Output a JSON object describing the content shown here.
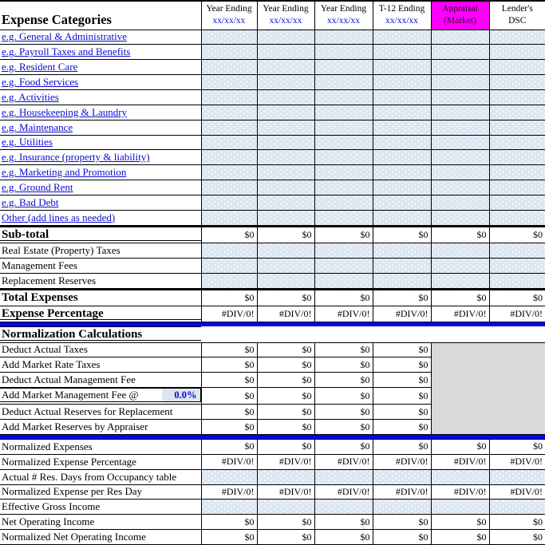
{
  "colors": {
    "input_cell_bg": "#dce6f1",
    "appraisal_header_bg": "#ff00ff",
    "disabled_region_bg": "#d9d9d9",
    "link_text": "#0b0bd0",
    "separator_band": "#0404f0"
  },
  "header": {
    "expense_categories": "Expense Categories",
    "columns": [
      {
        "line1": "Year Ending",
        "line2": "xx/xx/xx",
        "variant": "date"
      },
      {
        "line1": "Year Ending",
        "line2": "xx/xx/xx",
        "variant": "date"
      },
      {
        "line1": "Year Ending",
        "line2": "xx/xx/xx",
        "variant": "date"
      },
      {
        "line1": "T-12 Ending",
        "line2": "xx/xx/xx",
        "variant": "date"
      },
      {
        "line1": "Appraisal",
        "line2": "(Market)",
        "variant": "appraisal"
      },
      {
        "line1": "Lender's",
        "line2": "DSC",
        "variant": "plain"
      }
    ]
  },
  "body": {
    "rows": [
      {
        "label": "e.g. General & Administrative",
        "lstyle": "link",
        "kind": "input"
      },
      {
        "label": "e.g. Payroll Taxes and Benefits",
        "lstyle": "link",
        "kind": "input"
      },
      {
        "label": "e.g. Resident Care",
        "lstyle": "link",
        "kind": "input"
      },
      {
        "label": "e.g. Food Services",
        "lstyle": "link",
        "kind": "input"
      },
      {
        "label": "e.g. Activities",
        "lstyle": "link",
        "kind": "input"
      },
      {
        "label": "e.g. Housekeeping  & Laundry",
        "lstyle": "link",
        "kind": "input"
      },
      {
        "label": "e.g. Maintenance",
        "lstyle": "link",
        "kind": "input"
      },
      {
        "label": "e.g. Utilities",
        "lstyle": "link",
        "kind": "input"
      },
      {
        "label": "e.g. Insurance (property & liability)",
        "lstyle": "link",
        "kind": "input"
      },
      {
        "label": "e.g. Marketing and Promotion",
        "lstyle": "link",
        "kind": "input"
      },
      {
        "label": "e.g. Ground Rent",
        "lstyle": "link",
        "kind": "input"
      },
      {
        "label": "e.g. Bad Debt",
        "lstyle": "link",
        "kind": "input"
      },
      {
        "label": "Other (add lines as needed)",
        "lstyle": "link",
        "kind": "input"
      },
      {
        "label": "Sub-total",
        "lstyle": "bold_u",
        "kind": "money",
        "thick": true,
        "values": [
          "$0",
          "$0",
          "$0",
          "$0",
          "$0",
          "$0"
        ]
      },
      {
        "label": "Real Estate (Property) Taxes",
        "lstyle": "plain",
        "kind": "input"
      },
      {
        "label": "Management Fees",
        "lstyle": "plain",
        "kind": "input"
      },
      {
        "label": "Replacement Reserves",
        "lstyle": "plain",
        "kind": "input"
      },
      {
        "label": "Total Expenses",
        "lstyle": "bold",
        "kind": "money",
        "thick": true,
        "values": [
          "$0",
          "$0",
          "$0",
          "$0",
          "$0",
          "$0"
        ]
      },
      {
        "label": "Expense Percentage",
        "lstyle": "bold_u",
        "kind": "money",
        "values": [
          "#DIV/0!",
          "#DIV/0!",
          "#DIV/0!",
          "#DIV/0!",
          "#DIV/0!",
          "#DIV/0!"
        ]
      },
      {
        "kind": "band"
      },
      {
        "label": "Normalization Calculations",
        "lstyle": "section",
        "kind": "section"
      },
      {
        "label": "Deduct Actual Taxes",
        "lstyle": "plain",
        "kind": "norm",
        "values": [
          "$0",
          "$0",
          "$0",
          "$0"
        ],
        "gray_anchor": true
      },
      {
        "label": "Add Market Rate Taxes",
        "lstyle": "plain",
        "kind": "norm",
        "values": [
          "$0",
          "$0",
          "$0",
          "$0"
        ]
      },
      {
        "label": "Deduct Actual Management Fee",
        "lstyle": "plain",
        "kind": "norm",
        "values": [
          "$0",
          "$0",
          "$0",
          "$0"
        ]
      },
      {
        "label": "Add Market Management Fee @",
        "lstyle": "plain",
        "kind": "norm",
        "inline_value": "0.0%",
        "values": [
          "$0",
          "$0",
          "$0",
          "$0"
        ]
      },
      {
        "label": "Deduct Actual Reserves for Replacement",
        "lstyle": "plain",
        "kind": "norm",
        "values": [
          "$0",
          "$0",
          "$0",
          "$0"
        ]
      },
      {
        "label": "Add Market Reserves by Appraiser",
        "lstyle": "plain",
        "kind": "norm",
        "values": [
          "$0",
          "$0",
          "$0",
          "$0"
        ]
      },
      {
        "kind": "band"
      },
      {
        "label": "Normalized Expenses",
        "lstyle": "plain",
        "kind": "money",
        "values": [
          "$0",
          "$0",
          "$0",
          "$0",
          "$0",
          "$0"
        ]
      },
      {
        "label": "Normalized Expense Percentage",
        "lstyle": "plain",
        "kind": "money",
        "values": [
          "#DIV/0!",
          "#DIV/0!",
          "#DIV/0!",
          "#DIV/0!",
          "#DIV/0!",
          "#DIV/0!"
        ]
      },
      {
        "label": "Actual # Res. Days from Occupancy table",
        "lstyle": "plain",
        "kind": "input"
      },
      {
        "label": "Normalized Expense per Res Day",
        "lstyle": "plain",
        "kind": "money",
        "values": [
          "#DIV/0!",
          "#DIV/0!",
          "#DIV/0!",
          "#DIV/0!",
          "#DIV/0!",
          "#DIV/0!"
        ]
      },
      {
        "label": "Effective Gross Income",
        "lstyle": "plain",
        "kind": "input"
      },
      {
        "label": "Net Operating Income",
        "lstyle": "plain",
        "kind": "money",
        "values": [
          "$0",
          "$0",
          "$0",
          "$0",
          "$0",
          "$0"
        ]
      },
      {
        "label": "Normalized Net Operating Income",
        "lstyle": "plain",
        "kind": "money",
        "values": [
          "$0",
          "$0",
          "$0",
          "$0",
          "$0",
          "$0"
        ]
      }
    ]
  }
}
